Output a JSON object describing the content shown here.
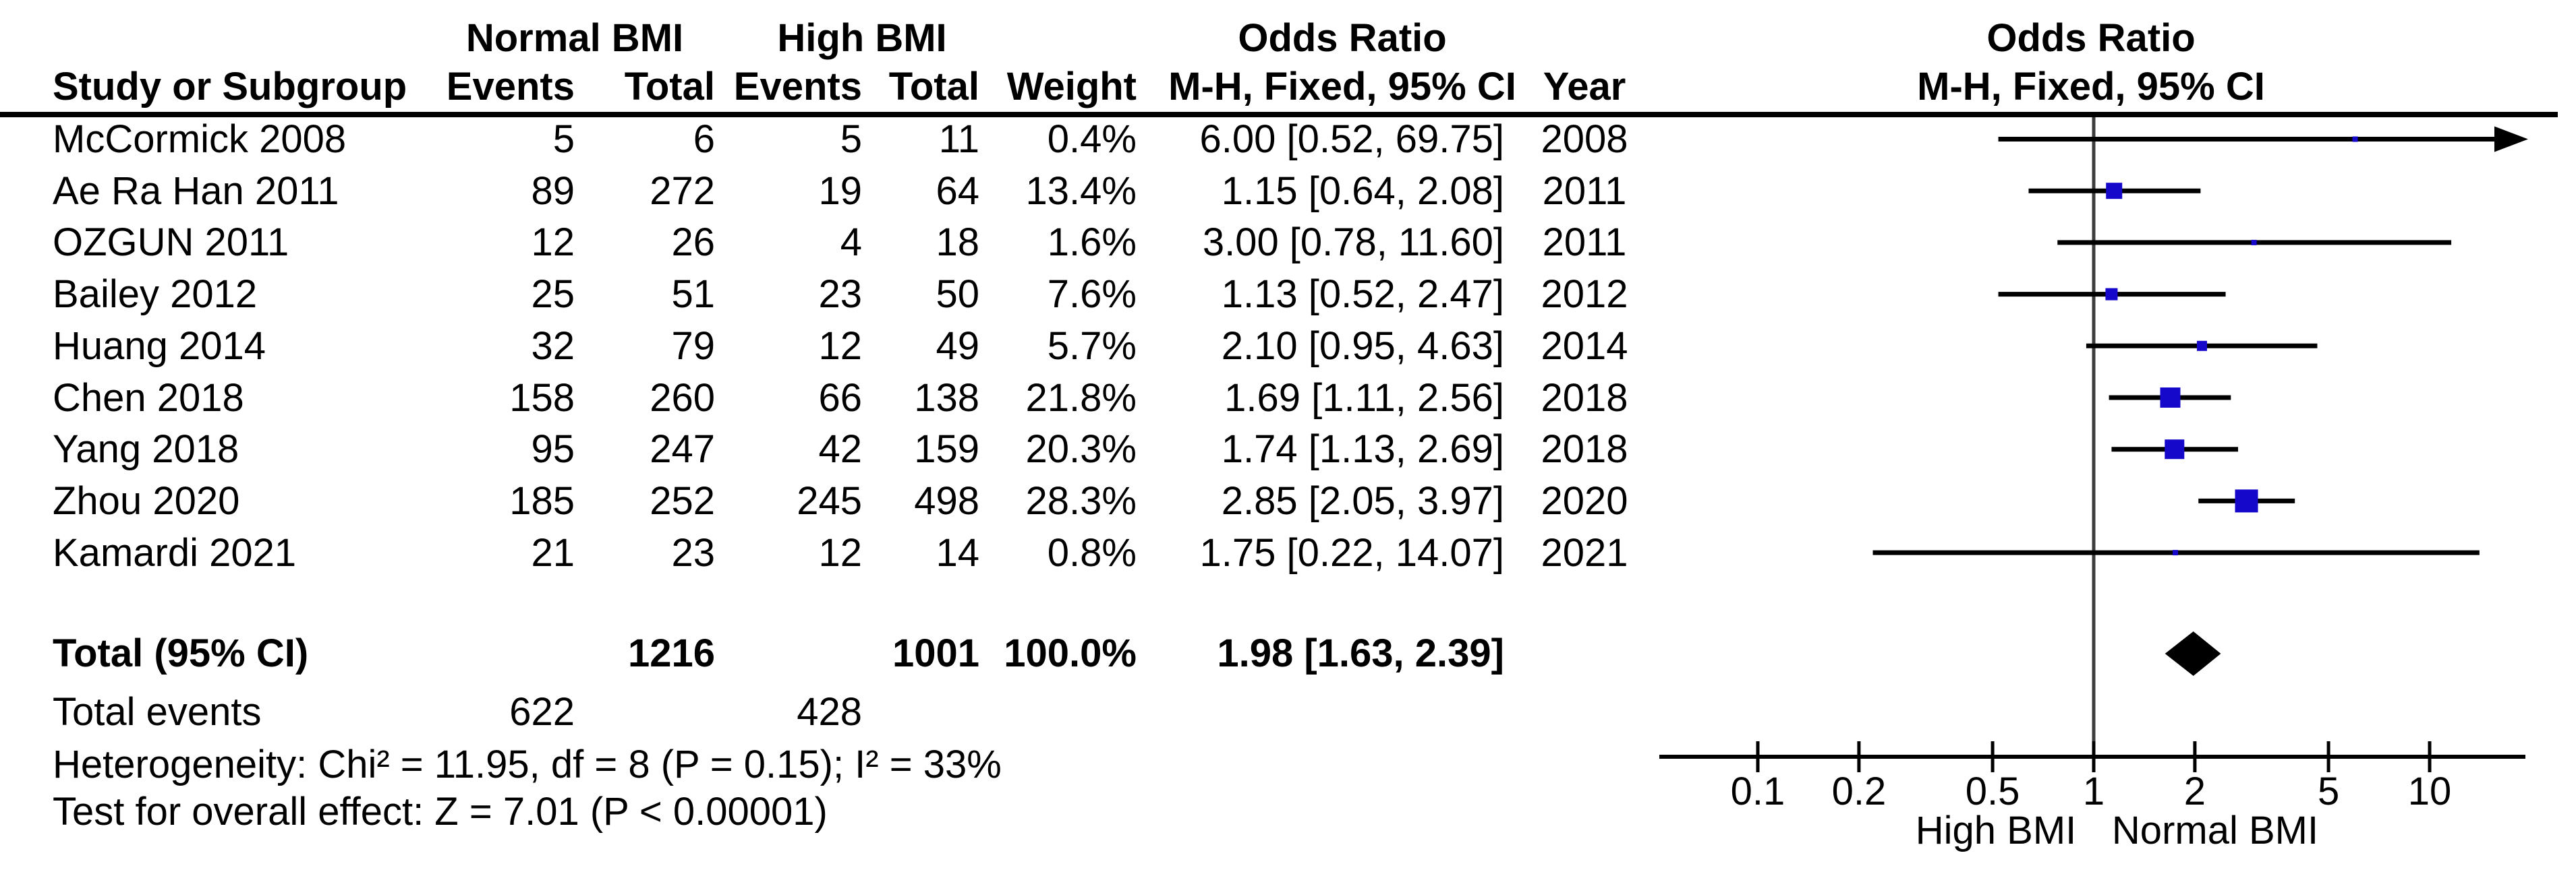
{
  "colors": {
    "square": "#1508cb",
    "diamond": "#000000",
    "ci_line": "#000000",
    "null_line": "#3d3d3d",
    "axis": "#000000",
    "text": "#000000"
  },
  "header": {
    "study": "Study or Subgroup",
    "group1": "Normal BMI",
    "group2": "High BMI",
    "events": "Events",
    "total": "Total",
    "weight": "Weight",
    "or_col_title": "Odds Ratio",
    "or_col_sub": "M-H, Fixed, 95% CI",
    "year": "Year",
    "plot_title": "Odds Ratio",
    "plot_sub": "M-H, Fixed, 95% CI"
  },
  "rows": [
    {
      "study": "McCormick 2008",
      "normal_events": "5",
      "normal_total": "6",
      "high_events": "5",
      "high_total": "11",
      "weight": "0.4%",
      "or_ci": "6.00 [0.52, 69.75]",
      "year": "2008",
      "or": 6.0,
      "ci_low": 0.52,
      "ci_high": 69.75,
      "weight_pct": 0.4
    },
    {
      "study": "Ae Ra Han 2011",
      "normal_events": "89",
      "normal_total": "272",
      "high_events": "19",
      "high_total": "64",
      "weight": "13.4%",
      "or_ci": "1.15 [0.64, 2.08]",
      "year": "2011",
      "or": 1.15,
      "ci_low": 0.64,
      "ci_high": 2.08,
      "weight_pct": 13.4
    },
    {
      "study": "OZGUN 2011",
      "normal_events": "12",
      "normal_total": "26",
      "high_events": "4",
      "high_total": "18",
      "weight": "1.6%",
      "or_ci": "3.00 [0.78, 11.60]",
      "year": "2011",
      "or": 3.0,
      "ci_low": 0.78,
      "ci_high": 11.6,
      "weight_pct": 1.6
    },
    {
      "study": "Bailey 2012",
      "normal_events": "25",
      "normal_total": "51",
      "high_events": "23",
      "high_total": "50",
      "weight": "7.6%",
      "or_ci": "1.13 [0.52, 2.47]",
      "year": "2012",
      "or": 1.13,
      "ci_low": 0.52,
      "ci_high": 2.47,
      "weight_pct": 7.6
    },
    {
      "study": "Huang 2014",
      "normal_events": "32",
      "normal_total": "79",
      "high_events": "12",
      "high_total": "49",
      "weight": "5.7%",
      "or_ci": "2.10 [0.95, 4.63]",
      "year": "2014",
      "or": 2.1,
      "ci_low": 0.95,
      "ci_high": 4.63,
      "weight_pct": 5.7
    },
    {
      "study": "Chen 2018",
      "normal_events": "158",
      "normal_total": "260",
      "high_events": "66",
      "high_total": "138",
      "weight": "21.8%",
      "or_ci": "1.69 [1.11, 2.56]",
      "year": "2018",
      "or": 1.69,
      "ci_low": 1.11,
      "ci_high": 2.56,
      "weight_pct": 21.8
    },
    {
      "study": "Yang 2018",
      "normal_events": "95",
      "normal_total": "247",
      "high_events": "42",
      "high_total": "159",
      "weight": "20.3%",
      "or_ci": "1.74 [1.13, 2.69]",
      "year": "2018",
      "or": 1.74,
      "ci_low": 1.13,
      "ci_high": 2.69,
      "weight_pct": 20.3
    },
    {
      "study": "Zhou 2020",
      "normal_events": "185",
      "normal_total": "252",
      "high_events": "245",
      "high_total": "498",
      "weight": "28.3%",
      "or_ci": "2.85 [2.05, 3.97]",
      "year": "2020",
      "or": 2.85,
      "ci_low": 2.05,
      "ci_high": 3.97,
      "weight_pct": 28.3
    },
    {
      "study": "Kamardi 2021",
      "normal_events": "21",
      "normal_total": "23",
      "high_events": "12",
      "high_total": "14",
      "weight": "0.8%",
      "or_ci": "1.75 [0.22, 14.07]",
      "year": "2021",
      "or": 1.75,
      "ci_low": 0.22,
      "ci_high": 14.07,
      "weight_pct": 0.8
    }
  ],
  "totals": {
    "label": "Total (95% CI)",
    "normal_total": "1216",
    "high_total": "1001",
    "weight": "100.0%",
    "or_ci": "1.98 [1.63, 2.39]",
    "or": 1.98,
    "ci_low": 1.63,
    "ci_high": 2.39,
    "events_label": "Total events",
    "normal_events": "622",
    "high_events": "428"
  },
  "footnotes": {
    "heterogeneity": "Heterogeneity: Chi² = 11.95, df = 8 (P = 0.15); I² = 33%",
    "overall_effect": "Test for overall effect: Z = 7.01 (P < 0.00001)"
  },
  "axis": {
    "tick_labels": [
      "0.1",
      "0.2",
      "0.5",
      "1",
      "2",
      "5",
      "10"
    ],
    "tick_values": [
      0.1,
      0.2,
      0.5,
      1,
      2,
      5,
      10
    ],
    "scale": "log10",
    "label_left": "High BMI",
    "label_right": "Normal BMI"
  },
  "chart_data": {
    "type": "scatter",
    "variant": "forest_plot",
    "title": "Odds Ratio",
    "subtitle": "M-H, Fixed, 95% CI",
    "x_scale": "log10",
    "x_ticks": [
      0.1,
      0.2,
      0.5,
      1,
      2,
      5,
      10
    ],
    "x_axis_labels": {
      "left_of_1": "High BMI",
      "right_of_1": "Normal BMI"
    },
    "null_line": 1,
    "series": [
      {
        "study": "McCormick 2008",
        "year": 2008,
        "or": 6.0,
        "ci_low": 0.52,
        "ci_high": 69.75,
        "weight_pct": 0.4,
        "clipped_right": true
      },
      {
        "study": "Ae Ra Han 2011",
        "year": 2011,
        "or": 1.15,
        "ci_low": 0.64,
        "ci_high": 2.08,
        "weight_pct": 13.4,
        "clipped_right": false
      },
      {
        "study": "OZGUN 2011",
        "year": 2011,
        "or": 3.0,
        "ci_low": 0.78,
        "ci_high": 11.6,
        "weight_pct": 1.6,
        "clipped_right": false
      },
      {
        "study": "Bailey 2012",
        "year": 2012,
        "or": 1.13,
        "ci_low": 0.52,
        "ci_high": 2.47,
        "weight_pct": 7.6,
        "clipped_right": false
      },
      {
        "study": "Huang 2014",
        "year": 2014,
        "or": 2.1,
        "ci_low": 0.95,
        "ci_high": 4.63,
        "weight_pct": 5.7,
        "clipped_right": false
      },
      {
        "study": "Chen 2018",
        "year": 2018,
        "or": 1.69,
        "ci_low": 1.11,
        "ci_high": 2.56,
        "weight_pct": 21.8,
        "clipped_right": false
      },
      {
        "study": "Yang 2018",
        "year": 2018,
        "or": 1.74,
        "ci_low": 1.13,
        "ci_high": 2.69,
        "weight_pct": 20.3,
        "clipped_right": false
      },
      {
        "study": "Zhou 2020",
        "year": 2020,
        "or": 2.85,
        "ci_low": 2.05,
        "ci_high": 3.97,
        "weight_pct": 28.3,
        "clipped_right": false
      },
      {
        "study": "Kamardi 2021",
        "year": 2021,
        "or": 1.75,
        "ci_low": 0.22,
        "ci_high": 14.07,
        "weight_pct": 0.8,
        "clipped_right": false
      }
    ],
    "total": {
      "label": "Total (95% CI)",
      "or": 1.98,
      "ci_low": 1.63,
      "ci_high": 2.39,
      "weight_pct": 100.0,
      "normal_total": 1216,
      "high_total": 1001,
      "normal_events": 622,
      "high_events": 428
    },
    "heterogeneity": {
      "chi2": 11.95,
      "df": 8,
      "p": 0.15,
      "i2_pct": 33
    },
    "overall_effect": {
      "z": 7.01,
      "p": "< 0.00001"
    }
  }
}
